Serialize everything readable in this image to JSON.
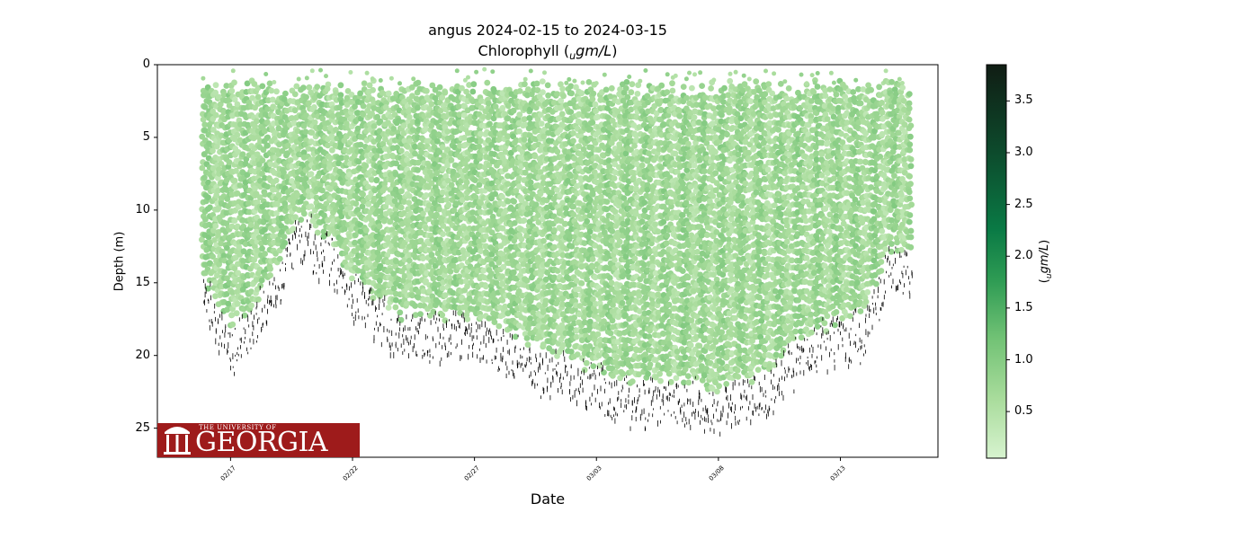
{
  "chart_data": {
    "type": "scatter",
    "title": "angus 2024-02-15 to 2024-03-15",
    "subtitle": "Chlorophyll (ugm/L)",
    "xlabel": "Date",
    "ylabel": "Depth (m)",
    "colorbar_label": "(ugm/L)",
    "x_range": [
      "2024-02-14",
      "2024-03-17"
    ],
    "y_range": [
      27,
      0
    ],
    "y_inverted": true,
    "x_ticks": [
      "02/17",
      "02/22",
      "02/27",
      "03/03",
      "03/08",
      "03/13"
    ],
    "y_ticks": [
      0,
      5,
      10,
      15,
      20,
      25
    ],
    "colorbar_range": [
      0.05,
      3.85
    ],
    "colorbar_ticks": [
      "0.5",
      "1.0",
      "1.5",
      "2.0",
      "2.5",
      "3.0",
      "3.5"
    ],
    "colormap": [
      "#d7f3cf",
      "#a9dc9c",
      "#73c376",
      "#2f9c54",
      "#0a7a45",
      "#0d4a2c",
      "#101d14"
    ],
    "bottom_depth_profile": {
      "dates": [
        "2024-02-16",
        "2024-02-17",
        "2024-02-18",
        "2024-02-19",
        "2024-02-20",
        "2024-02-21",
        "2024-02-22",
        "2024-02-23",
        "2024-02-24",
        "2024-02-26",
        "2024-02-28",
        "2024-03-01",
        "2024-03-02",
        "2024-03-04",
        "2024-03-06",
        "2024-03-08",
        "2024-03-10",
        "2024-03-11",
        "2024-03-12",
        "2024-03-14",
        "2024-03-15"
      ],
      "depth_m": [
        16.0,
        19.5,
        18.0,
        14.5,
        11.5,
        13.5,
        16.0,
        17.5,
        18.5,
        18.5,
        19.0,
        21.0,
        21.5,
        23.0,
        23.0,
        23.5,
        22.5,
        20.5,
        19.5,
        18.5,
        14.0
      ]
    },
    "chlorophyll_range_ugm_per_L": [
      0.2,
      1.5
    ]
  },
  "logo": {
    "top_text": "THE UNIVERSITY OF",
    "main_text": "GEORGIA"
  }
}
